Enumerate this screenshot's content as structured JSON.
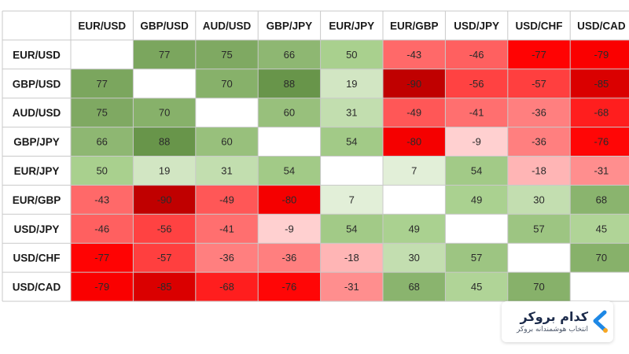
{
  "chart_data": {
    "type": "heatmap",
    "title": "",
    "columns": [
      "EUR/USD",
      "GBP/USD",
      "AUD/USD",
      "GBP/JPY",
      "EUR/JPY",
      "EUR/GBP",
      "USD/JPY",
      "USD/CHF",
      "USD/CAD"
    ],
    "rows": [
      "EUR/USD",
      "GBP/USD",
      "AUD/USD",
      "GBP/JPY",
      "EUR/JPY",
      "EUR/GBP",
      "USD/JPY",
      "USD/CHF",
      "USD/CAD"
    ],
    "values": [
      [
        null,
        77,
        75,
        66,
        50,
        -43,
        -46,
        -77,
        -79
      ],
      [
        77,
        null,
        70,
        88,
        19,
        -90,
        -56,
        -57,
        -85
      ],
      [
        75,
        70,
        null,
        60,
        31,
        -49,
        -41,
        -36,
        -68
      ],
      [
        66,
        88,
        60,
        null,
        54,
        -80,
        -9,
        -36,
        -76
      ],
      [
        50,
        19,
        31,
        54,
        null,
        7,
        54,
        -18,
        -31
      ],
      [
        -43,
        -90,
        -49,
        -80,
        7,
        null,
        49,
        30,
        68
      ],
      [
        -46,
        -56,
        -41,
        -9,
        54,
        49,
        null,
        57,
        45
      ],
      [
        -77,
        -57,
        -36,
        -36,
        -18,
        30,
        57,
        null,
        70
      ],
      [
        -79,
        -85,
        -68,
        -76,
        -31,
        68,
        45,
        70,
        null
      ]
    ],
    "color_scale": {
      "min": -100,
      "max": 100,
      "negative": "#ff0000",
      "positive": "#548235",
      "neutral": "#ffffff"
    }
  },
  "brand": {
    "name": "کدام بروکر",
    "tagline": "انتخاب هوشمندانه بروکر",
    "mark_color": "#1e88e5",
    "dot_color": "#f6a623",
    "icon": "chevron-logo-icon"
  }
}
